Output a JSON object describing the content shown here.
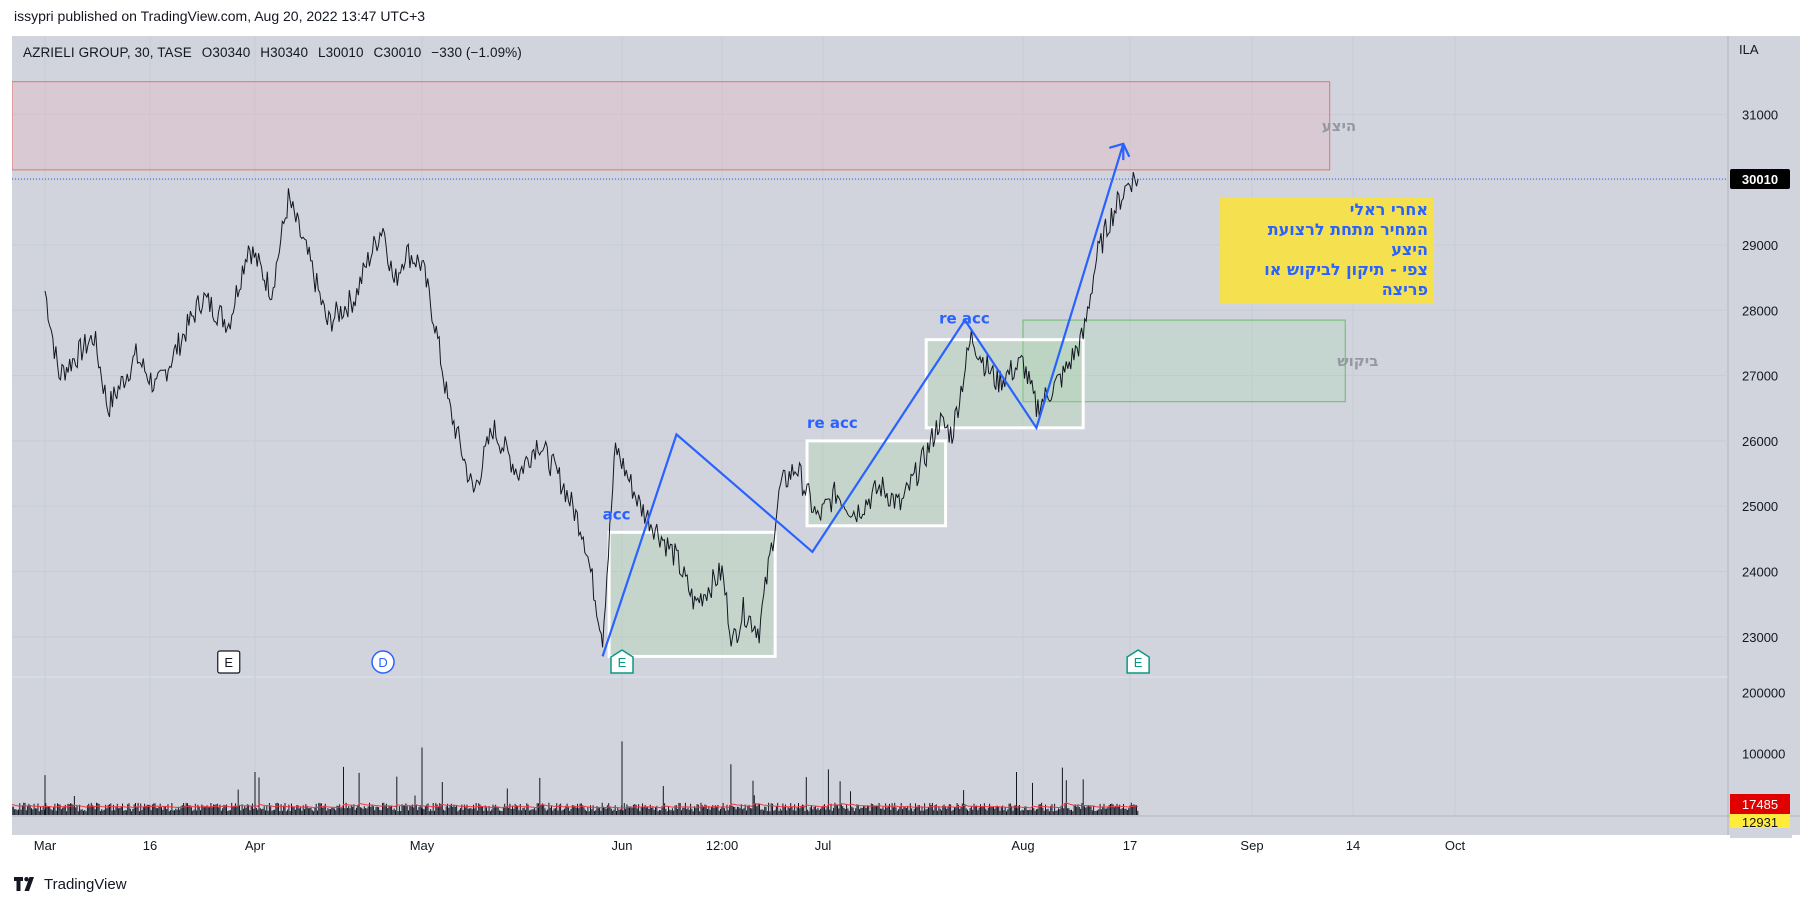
{
  "header": {
    "published": "issypri published on TradingView.com, Aug 20, 2022 13:47 UTC+3"
  },
  "symbol": {
    "name": "AZRIELI GROUP, 30, TASE",
    "open": "O30340",
    "high": "H30340",
    "low": "L30010",
    "close": "C30010",
    "change": "−330 (−1.09%)"
  },
  "currency": "ILA",
  "footer": {
    "brand": "TradingView"
  },
  "note": {
    "lines": [
      "אחרי ראלי",
      "המחיר מתחת לרצועת",
      "היצע",
      "צפי - תיקון לביקוש או",
      "פריצה"
    ]
  },
  "colors": {
    "background": "#d1d4dc",
    "supply_zone": "#f3a6b9",
    "demand_zone": "#a5d6a7",
    "pattern_line": "#2962ff",
    "note_bg": "#f5e150",
    "price_badge": "#000000",
    "volume_ma_badge": "#e00000",
    "volume_badge": "#ffeb3b"
  },
  "chart_data": {
    "type": "line",
    "title": "",
    "interval": "30",
    "x_ticks": [
      "Mar",
      "16",
      "Apr",
      "May",
      "Jun",
      "12:00",
      "Jul",
      "Aug",
      "17",
      "Sep",
      "14",
      "Oct"
    ],
    "y_ticks": [
      "23000",
      "24000",
      "25000",
      "26000",
      "27000",
      "28000",
      "29000",
      "30000",
      "31000"
    ],
    "ylim": [
      22400,
      32200
    ],
    "last_price": "30010",
    "price_path": [
      {
        "date": "2022-03-01",
        "close": 28300
      },
      {
        "date": "2022-03-03",
        "close": 27000
      },
      {
        "date": "2022-03-08",
        "close": 27600
      },
      {
        "date": "2022-03-10",
        "close": 26500
      },
      {
        "date": "2022-03-14",
        "close": 27300
      },
      {
        "date": "2022-03-17",
        "close": 26800
      },
      {
        "date": "2022-03-21",
        "close": 27600
      },
      {
        "date": "2022-03-24",
        "close": 28200
      },
      {
        "date": "2022-03-28",
        "close": 27800
      },
      {
        "date": "2022-03-31",
        "close": 29000
      },
      {
        "date": "2022-04-04",
        "close": 28300
      },
      {
        "date": "2022-04-07",
        "close": 29700
      },
      {
        "date": "2022-04-11",
        "close": 28700
      },
      {
        "date": "2022-04-14",
        "close": 27800
      },
      {
        "date": "2022-04-19",
        "close": 28200
      },
      {
        "date": "2022-04-21",
        "close": 28700
      },
      {
        "date": "2022-04-24",
        "close": 29300
      },
      {
        "date": "2022-04-26",
        "close": 28400
      },
      {
        "date": "2022-04-28",
        "close": 28900
      },
      {
        "date": "2022-05-01",
        "close": 28700
      },
      {
        "date": "2022-05-03",
        "close": 27800
      },
      {
        "date": "2022-05-05",
        "close": 26600
      },
      {
        "date": "2022-05-09",
        "close": 25200
      },
      {
        "date": "2022-05-12",
        "close": 26200
      },
      {
        "date": "2022-05-16",
        "close": 25500
      },
      {
        "date": "2022-05-19",
        "close": 26000
      },
      {
        "date": "2022-05-23",
        "close": 25300
      },
      {
        "date": "2022-05-26",
        "close": 24600
      },
      {
        "date": "2022-05-29",
        "close": 23000
      },
      {
        "date": "2022-05-31",
        "close": 25900
      },
      {
        "date": "2022-06-03",
        "close": 25000
      },
      {
        "date": "2022-06-07",
        "close": 24200
      },
      {
        "date": "2022-06-09",
        "close": 23500
      },
      {
        "date": "2022-06-12",
        "close": 24000
      },
      {
        "date": "2022-06-14",
        "close": 22900
      },
      {
        "date": "2022-06-16",
        "close": 23400
      },
      {
        "date": "2022-06-19",
        "close": 23100
      },
      {
        "date": "2022-06-21",
        "close": 24200
      },
      {
        "date": "2022-06-23",
        "close": 25300
      },
      {
        "date": "2022-06-26",
        "close": 25600
      },
      {
        "date": "2022-06-28",
        "close": 25200
      },
      {
        "date": "2022-06-30",
        "close": 24800
      },
      {
        "date": "2022-07-03",
        "close": 25200
      },
      {
        "date": "2022-07-06",
        "close": 24900
      },
      {
        "date": "2022-07-10",
        "close": 25300
      },
      {
        "date": "2022-07-13",
        "close": 25000
      },
      {
        "date": "2022-07-17",
        "close": 25800
      },
      {
        "date": "2022-07-19",
        "close": 26300
      },
      {
        "date": "2022-07-21",
        "close": 26100
      },
      {
        "date": "2022-07-24",
        "close": 27600
      },
      {
        "date": "2022-07-26",
        "close": 27200
      },
      {
        "date": "2022-07-28",
        "close": 26900
      },
      {
        "date": "2022-08-01",
        "close": 27200
      },
      {
        "date": "2022-08-03",
        "close": 26500
      },
      {
        "date": "2022-08-07",
        "close": 27000
      },
      {
        "date": "2022-08-10",
        "close": 27600
      },
      {
        "date": "2022-08-12",
        "close": 28800
      },
      {
        "date": "2022-08-14",
        "close": 29400
      },
      {
        "date": "2022-08-16",
        "close": 29800
      },
      {
        "date": "2022-08-17",
        "close": 30000
      },
      {
        "date": "2022-08-18",
        "close": 30010
      }
    ],
    "zones": [
      {
        "label": "היצע",
        "from": "2022-02-26",
        "to": "2022-09-11",
        "low": 30150,
        "high": 31500
      },
      {
        "label": "ביקוש",
        "from": "2022-08-01",
        "to": "2022-09-13",
        "low": 26600,
        "high": 27850
      }
    ],
    "boxes": [
      {
        "from": "2022-05-30",
        "to": "2022-06-22",
        "low": 22700,
        "high": 24600
      },
      {
        "from": "2022-06-28",
        "to": "2022-07-20",
        "low": 24700,
        "high": 26000
      },
      {
        "from": "2022-07-17",
        "to": "2022-08-10",
        "low": 26200,
        "high": 27550
      }
    ],
    "pattern_path": [
      {
        "date": "2022-05-29",
        "price": 22700
      },
      {
        "date": "2022-06-07",
        "price": 26100
      },
      {
        "date": "2022-06-29",
        "price": 24300
      },
      {
        "date": "2022-07-23",
        "price": 27850
      },
      {
        "date": "2022-08-03",
        "price": 26200
      },
      {
        "date": "2022-08-16",
        "price": 30550
      },
      {
        "date": "2022-08-16",
        "price": 30300
      }
    ],
    "pattern_labels": [
      {
        "text": "acc",
        "date": "2022-05-29",
        "price": 24800
      },
      {
        "text": "re acc",
        "date": "2022-06-28",
        "price": 26200
      },
      {
        "text": "re acc",
        "date": "2022-07-19",
        "price": 27800
      }
    ],
    "events": [
      {
        "type": "E",
        "date": "2022-03-28",
        "style": "earnings-past"
      },
      {
        "type": "D",
        "date": "2022-04-24",
        "style": "dividend"
      },
      {
        "type": "E",
        "date": "2022-06-01",
        "style": "earnings"
      },
      {
        "type": "E",
        "date": "2022-08-18",
        "style": "earnings"
      }
    ],
    "volume": {
      "y_ticks": [
        "100000",
        "200000"
      ],
      "max": 220000,
      "ma_value": "17485",
      "last_value": "12931"
    }
  }
}
